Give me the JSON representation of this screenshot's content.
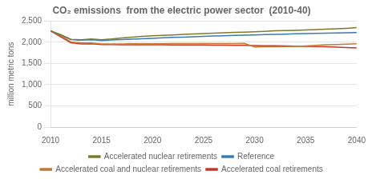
{
  "chart_data": {
    "type": "line",
    "title": "CO₂ emissions  from the electric power sector  (2010-40)",
    "y_label": "million metric tons",
    "x": [
      2010,
      2011,
      2012,
      2013,
      2014,
      2015,
      2016,
      2017,
      2018,
      2019,
      2020,
      2021,
      2022,
      2023,
      2024,
      2025,
      2026,
      2027,
      2028,
      2029,
      2030,
      2031,
      2032,
      2033,
      2034,
      2035,
      2036,
      2037,
      2038,
      2039,
      2040
    ],
    "series": [
      {
        "name": "Accelerated nuclear retirements",
        "color": "#7b7b28",
        "values": [
          2270,
          2180,
          2070,
          2060,
          2080,
          2060,
          2080,
          2100,
          2120,
          2140,
          2155,
          2165,
          2175,
          2185,
          2195,
          2205,
          2215,
          2225,
          2235,
          2240,
          2250,
          2260,
          2270,
          2275,
          2280,
          2290,
          2300,
          2310,
          2320,
          2330,
          2345
        ]
      },
      {
        "name": "Reference",
        "color": "#3a7ab5",
        "values": [
          2270,
          2175,
          2065,
          2050,
          2060,
          2040,
          2055,
          2065,
          2075,
          2085,
          2095,
          2105,
          2115,
          2120,
          2130,
          2140,
          2148,
          2155,
          2162,
          2168,
          2175,
          2182,
          2188,
          2193,
          2200,
          2205,
          2210,
          2215,
          2220,
          2225,
          2230
        ]
      },
      {
        "name": "Accelerated coal and nuclear retirements",
        "color": "#c87833",
        "values": [
          2270,
          2155,
          2010,
          1985,
          1985,
          1960,
          1962,
          1963,
          1964,
          1965,
          1966,
          1967,
          1968,
          1969,
          1970,
          1971,
          1972,
          1972,
          1972,
          1973,
          1890,
          1893,
          1896,
          1900,
          1905,
          1915,
          1930,
          1940,
          1948,
          1955,
          1965
        ]
      },
      {
        "name": "Accelerated coal retirements",
        "color": "#c0392b",
        "values": [
          2270,
          2130,
          1990,
          1960,
          1965,
          1945,
          1945,
          1944,
          1943,
          1942,
          1941,
          1940,
          1939,
          1938,
          1937,
          1936,
          1934,
          1932,
          1930,
          1928,
          1924,
          1920,
          1917,
          1914,
          1911,
          1906,
          1901,
          1893,
          1884,
          1876,
          1868
        ]
      }
    ],
    "xlim": [
      2010,
      2040
    ],
    "xticks": [
      2010,
      2015,
      2020,
      2025,
      2030,
      2035,
      2040
    ],
    "ylim": [
      0,
      2500
    ],
    "yticks": [
      0,
      500,
      {
        "value": 1000,
        "label": "1,000"
      },
      {
        "value": 1500,
        "label": "1,500"
      },
      {
        "value": 2000,
        "label": "2,000"
      },
      {
        "value": 2500,
        "label": "2,500"
      }
    ],
    "grid": "y",
    "legend": "bottom"
  }
}
